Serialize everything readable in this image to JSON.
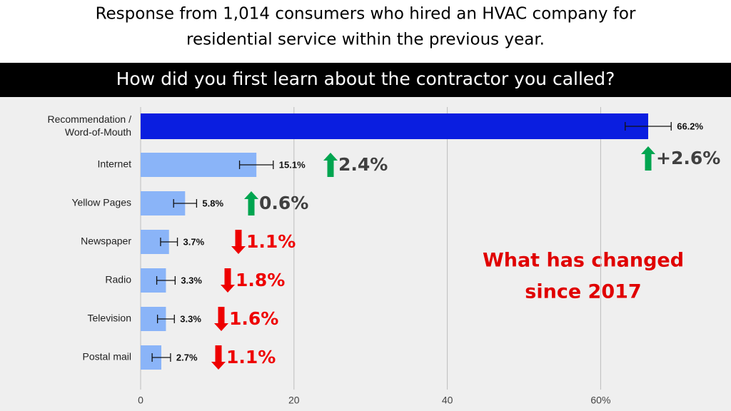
{
  "chart_data": {
    "type": "bar",
    "orientation": "horizontal",
    "title": [
      "Response from 1,014 consumers who hired an HVAC company for",
      "residential service within the previous year."
    ],
    "subtitle": "How did you first learn about the contractor you called?",
    "categories": [
      "Recommendation / Word-of-Mouth",
      "Internet",
      "Yellow Pages",
      "Newspaper",
      "Radio",
      "Television",
      "Postal mail"
    ],
    "values": [
      66.2,
      15.1,
      5.8,
      3.7,
      3.3,
      3.3,
      2.7
    ],
    "value_labels": [
      "66.2%",
      "15.1%",
      "5.8%",
      "3.7%",
      "3.3%",
      "3.3%",
      "2.7%"
    ],
    "errors": [
      3,
      2.2,
      1.5,
      1.1,
      1.2,
      1.1,
      1.2
    ],
    "colors": [
      "#0a1ee0",
      "#8ab4f8",
      "#8ab4f8",
      "#8ab4f8",
      "#8ab4f8",
      "#8ab4f8",
      "#8ab4f8"
    ],
    "xlim": [
      0,
      77
    ],
    "xticks": [
      0,
      20,
      40,
      {
        "value": 60,
        "label": "60%"
      }
    ],
    "grid": true,
    "changes": [
      {
        "label": "+2.6%",
        "direction": "up"
      },
      {
        "label": "2.4%",
        "direction": "up"
      },
      {
        "label": "0.6%",
        "direction": "up"
      },
      {
        "label": "1.1%",
        "direction": "down"
      },
      {
        "label": "1.8%",
        "direction": "down"
      },
      {
        "label": "1.6%",
        "direction": "down"
      },
      {
        "label": "1.1%",
        "direction": "down"
      }
    ],
    "up_color": "#00a550",
    "down_color": "#ee0000",
    "annotation": [
      "What has changed",
      "since 2017"
    ]
  }
}
